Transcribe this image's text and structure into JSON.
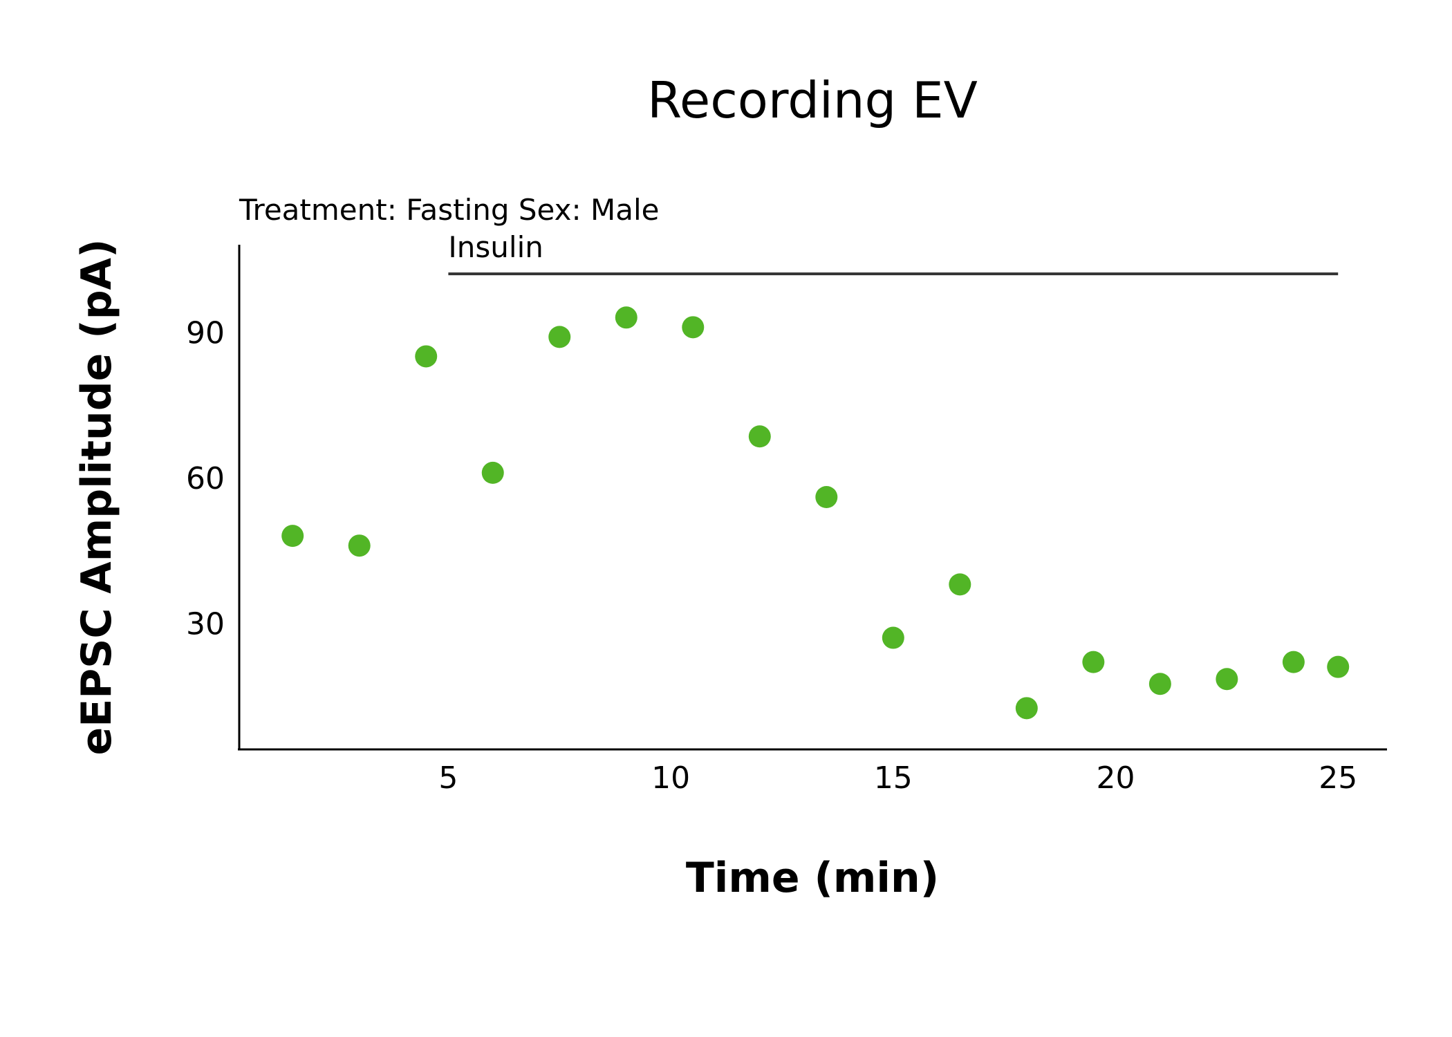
{
  "chart_data": {
    "type": "scatter",
    "title": "Recording EV",
    "subtitle": "Treatment: Fasting  Sex: Male",
    "xlabel": "Time (min)",
    "ylabel": "eEPSC Amplitude (pA)",
    "xlim": [
      0.3,
      26.1
    ],
    "ylim": [
      4,
      108
    ],
    "xticks": [
      5,
      10,
      15,
      20,
      25
    ],
    "yticks": [
      30,
      60,
      90
    ],
    "grid": false,
    "color": "#52b526",
    "annotation": {
      "label": "Insulin",
      "x_start": 5,
      "x_end": 25,
      "y": 102
    },
    "x": [
      1.5,
      3,
      4.5,
      6,
      7.5,
      9,
      10.5,
      12,
      13.5,
      15,
      16.5,
      18,
      19.5,
      21,
      22.5,
      24,
      25
    ],
    "y": [
      48,
      46,
      85,
      61,
      89,
      93,
      91,
      68.5,
      56,
      27,
      38,
      12.5,
      22,
      17.5,
      18.5,
      22,
      21
    ]
  }
}
